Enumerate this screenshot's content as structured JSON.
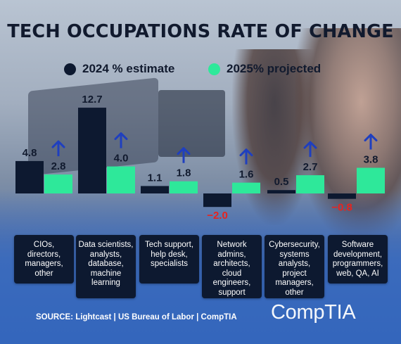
{
  "title": "TECH OCCUPATIONS RATE OF CHANGE",
  "legend": [
    {
      "label": "2024 % estimate",
      "color": "#0d1930"
    },
    {
      "label": "2025% projected",
      "color": "#2ee89a"
    }
  ],
  "colors": {
    "bar_2024": "#0d1930",
    "bar_2025": "#2ee89a",
    "negative_label": "#e8231e",
    "arrow": "#1f3fbf",
    "label": "#111a2e"
  },
  "chart_data": {
    "type": "bar",
    "categories": [
      "CIOs, directors, managers, other",
      "Data scientists, analysts, database, machine learning",
      "Tech support, help desk, specialists",
      "Network admins, architects, cloud engineers, support",
      "Cybersecurity, systems analysts, project managers, other",
      "Software development, programmers, web, QA, AI"
    ],
    "series": [
      {
        "name": "2024 % estimate",
        "values": [
          4.8,
          12.7,
          1.1,
          -2.0,
          0.5,
          -0.8
        ],
        "labels": [
          "4.8",
          "12.7",
          "1.1",
          "−2.0",
          "0.5",
          "−0.8"
        ]
      },
      {
        "name": "2025% projected",
        "values": [
          2.8,
          4.0,
          1.8,
          1.6,
          2.7,
          3.8
        ],
        "labels": [
          "2.8",
          "4.0",
          "1.8",
          "1.6",
          "2.7",
          "3.8"
        ]
      }
    ],
    "arrows": "up-arrow-icon above each 2025 projected bar"
  },
  "categories_display": [
    "CIOs, directors, managers, other",
    "Data scientists, analysts, database, machine learning",
    "Tech support, help desk, specialists",
    "Network admins, architects, cloud engineers, support",
    "Cybersecurity, systems analysts, project managers, other",
    "Software development, programmers, web, QA, AI"
  ],
  "source": "SOURCE: Lightcast | US Bureau of Labor | CompTIA",
  "logo": "CompTIA"
}
